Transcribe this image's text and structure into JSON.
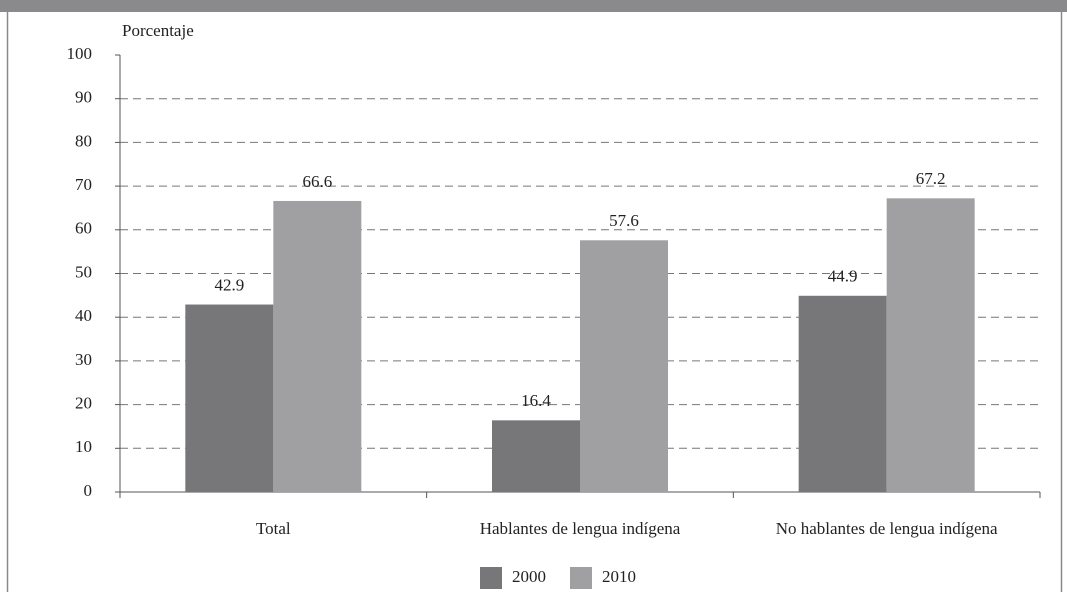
{
  "chart_data": {
    "type": "bar",
    "y_axis_label": "Porcentaje",
    "categories": [
      "Total",
      "Hablantes de lengua indígena",
      "No hablantes de lengua indígena"
    ],
    "series": [
      {
        "name": "2000",
        "color": "#77777a",
        "values": [
          42.9,
          16.4,
          44.9
        ]
      },
      {
        "name": "2010",
        "color": "#a0a0a2",
        "values": [
          66.6,
          57.6,
          67.2
        ]
      }
    ],
    "ylim": [
      0,
      100
    ],
    "yticks": [
      0,
      10,
      20,
      30,
      40,
      50,
      60,
      70,
      80,
      90,
      100
    ],
    "grid": true,
    "legend": "bottom"
  }
}
